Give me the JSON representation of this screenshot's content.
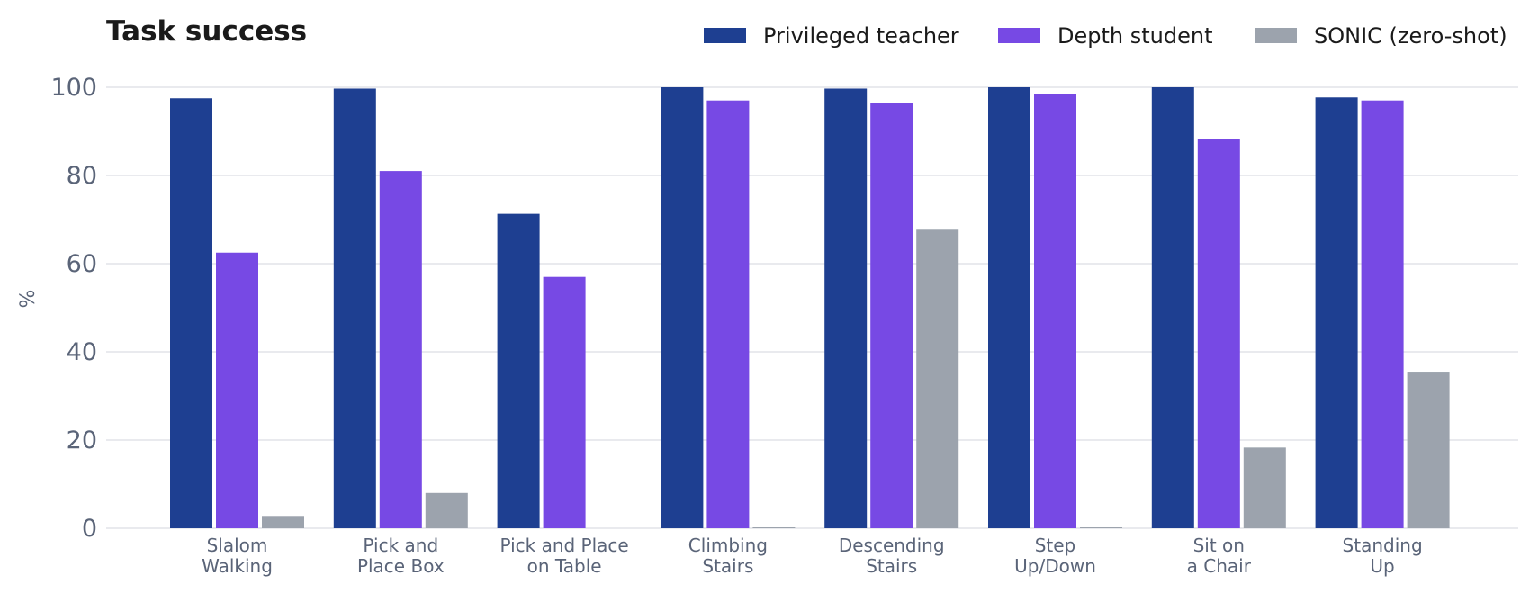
{
  "chart_data": {
    "type": "bar",
    "title": "Task success",
    "ylabel": "%",
    "xlabel": "",
    "ylim": [
      0,
      100
    ],
    "yticks": [
      0,
      20,
      40,
      60,
      80,
      100
    ],
    "grid": true,
    "legend_position": "top-right",
    "categories": [
      [
        "Slalom",
        "Walking"
      ],
      [
        "Pick and",
        "Place Box"
      ],
      [
        "Pick and Place",
        "on Table"
      ],
      [
        "Climbing",
        "Stairs"
      ],
      [
        "Descending",
        "Stairs"
      ],
      [
        "Step",
        "Up/Down"
      ],
      [
        "Sit on",
        "a Chair"
      ],
      [
        "Standing",
        "Up"
      ]
    ],
    "series": [
      {
        "name": "Privileged teacher",
        "color": "#1e3f91",
        "values": [
          97.5,
          99.7,
          71.3,
          100,
          99.7,
          100,
          100,
          97.7
        ]
      },
      {
        "name": "Depth student",
        "color": "#7749e4",
        "values": [
          62.5,
          81,
          57,
          97,
          96.5,
          98.5,
          88.3,
          97
        ]
      },
      {
        "name": "SONIC (zero-shot)",
        "color": "#9ca3ad",
        "values": [
          2.8,
          8,
          0,
          0.2,
          67.7,
          0.2,
          18.3,
          35.5
        ]
      }
    ]
  }
}
